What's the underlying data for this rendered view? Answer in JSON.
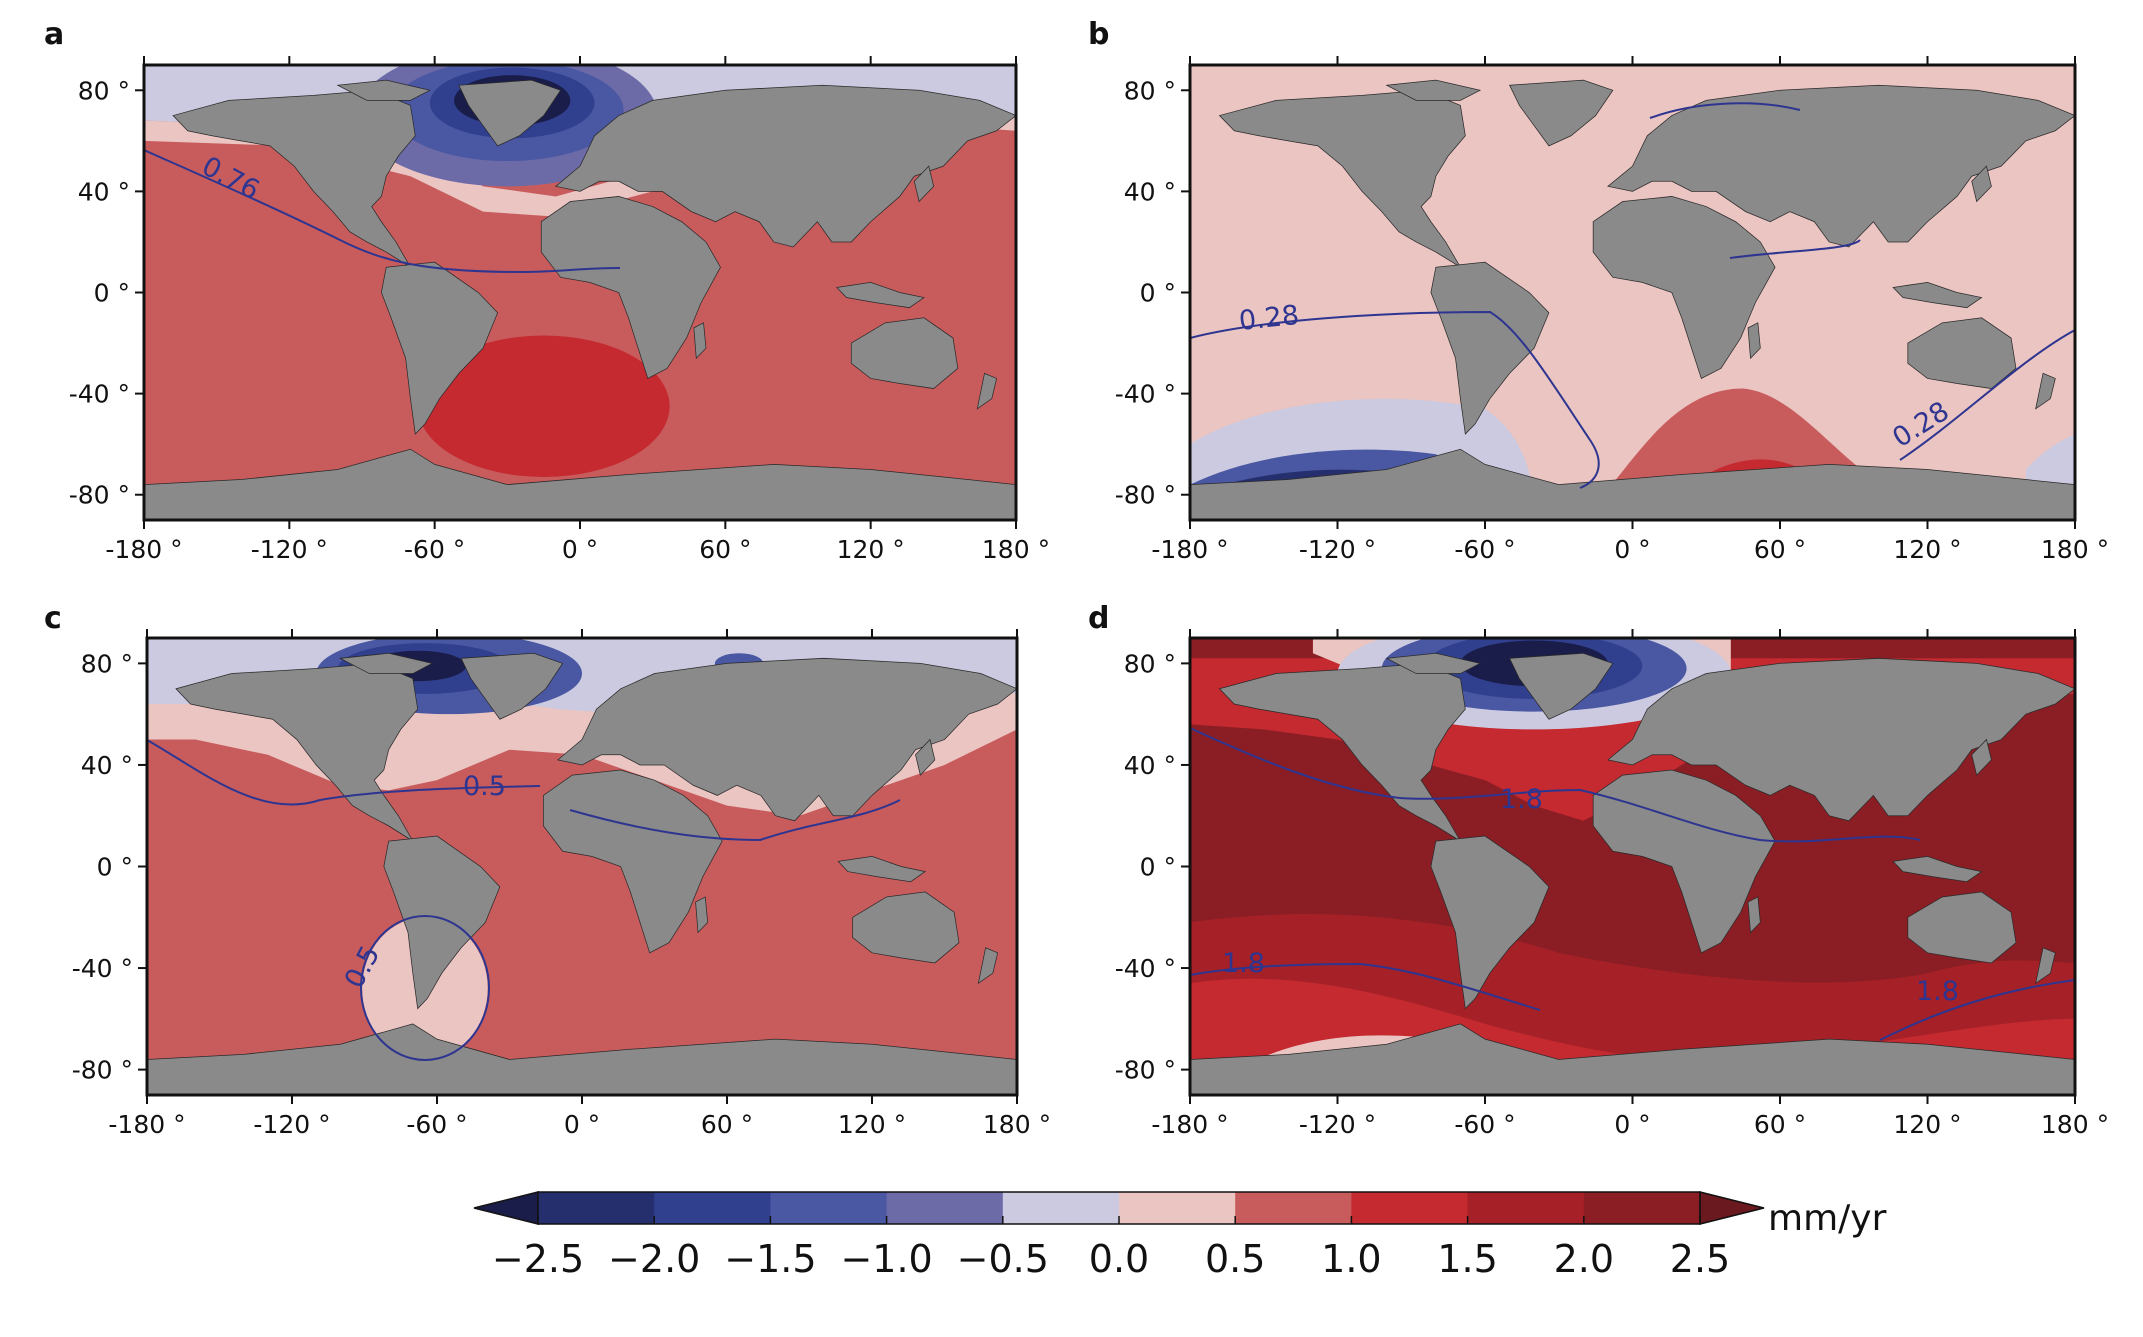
{
  "colors": {
    "land": "#8a8a8a",
    "coast": "#2a2a2a",
    "contour": "#2e3590",
    "levels": [
      "#1a1d4a",
      "#262f6e",
      "#30408f",
      "#4a57a2",
      "#6d6aa8",
      "#cbcae0",
      "#eac5c2",
      "#c85c5d",
      "#c42a30",
      "#a52127",
      "#8b1e24",
      "#6a1a1e"
    ]
  },
  "axes": {
    "x_ticks": [
      "-180 °",
      "-120 °",
      "-60 °",
      "0 °",
      "60 °",
      "120 °",
      "180 °"
    ],
    "y_ticks": [
      "80 °",
      "40 °",
      "0 °",
      "-40 °",
      "-80 °"
    ]
  },
  "panels": [
    {
      "letter": "a",
      "background_level": 7,
      "contour_label": "0.76"
    },
    {
      "letter": "b",
      "background_level": 6,
      "contour_label": "0.28"
    },
    {
      "letter": "c",
      "background_level": 7,
      "contour_label": "0.5"
    },
    {
      "letter": "d",
      "background_level": 10,
      "contour_label": "1.8"
    }
  ],
  "colorbar": {
    "ticks": [
      "−2.5",
      "−2.0",
      "−1.5",
      "−1.0",
      "−0.5",
      "0.0",
      "0.5",
      "1.0",
      "1.5",
      "2.0",
      "2.5"
    ],
    "unit": "mm/yr",
    "range": [
      -2.5,
      2.5
    ],
    "step": 0.5
  }
}
